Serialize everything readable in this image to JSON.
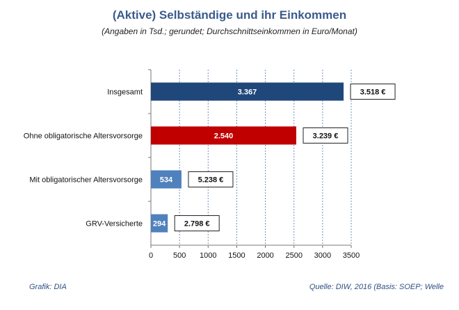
{
  "chart_data": {
    "type": "bar",
    "orientation": "horizontal",
    "title": "(Aktive) Selbständige und ihr Einkommen",
    "subtitle": "(Angaben in Tsd.; gerundet; Durchschnittseinkommen in Euro/Monat)",
    "categories": [
      "Insgesamt",
      "Ohne obligatorische Altersvorsorge",
      "Mit obligatorischer Altersvorsorge",
      "GRV-Versicherte"
    ],
    "values": [
      3367,
      2540,
      534,
      294
    ],
    "value_labels": [
      "3.367",
      "2.540",
      "534",
      "294"
    ],
    "income_labels": [
      "3.518 €",
      "3.239 €",
      "5.238 €",
      "2.798 €"
    ],
    "bar_colors": [
      "#1f477a",
      "#c00000",
      "#4f81bd",
      "#4f81bd"
    ],
    "xlim": [
      0,
      3500
    ],
    "xticks": [
      0,
      500,
      1000,
      1500,
      2000,
      2500,
      3000,
      3500
    ],
    "grid": "vertical dotted"
  },
  "footer": {
    "left": "Grafik: DIA",
    "right": "Quelle: DIW, 2016 (Basis: SOEP; Welle"
  }
}
